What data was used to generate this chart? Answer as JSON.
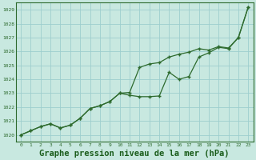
{
  "title": "Graphe pression niveau de la mer (hPa)",
  "xlim": [
    -0.5,
    23.5
  ],
  "ylim": [
    1019.5,
    1029.5
  ],
  "yticks": [
    1020,
    1021,
    1022,
    1023,
    1024,
    1025,
    1026,
    1027,
    1028,
    1029
  ],
  "xticks": [
    0,
    1,
    2,
    3,
    4,
    5,
    6,
    7,
    8,
    9,
    10,
    11,
    12,
    13,
    14,
    15,
    16,
    17,
    18,
    19,
    20,
    21,
    22,
    23
  ],
  "line1_x": [
    0,
    1,
    2,
    3,
    4,
    5,
    6,
    7,
    8,
    9,
    10,
    11,
    12,
    13,
    14,
    15,
    16,
    17,
    18,
    19,
    20,
    21,
    22,
    23
  ],
  "line1_y": [
    1020.0,
    1020.3,
    1020.6,
    1020.8,
    1020.5,
    1020.7,
    1021.2,
    1021.9,
    1022.1,
    1022.4,
    1023.0,
    1022.85,
    1022.75,
    1022.75,
    1022.8,
    1024.5,
    1024.0,
    1024.2,
    1025.6,
    1025.9,
    1026.3,
    1026.2,
    1027.0,
    1029.2
  ],
  "line2_x": [
    0,
    1,
    2,
    3,
    4,
    5,
    6,
    7,
    8,
    9,
    10,
    11,
    12,
    13,
    14,
    15,
    16,
    17,
    18,
    19,
    20,
    21,
    22,
    23
  ],
  "line2_y": [
    1020.0,
    1020.3,
    1020.6,
    1020.8,
    1020.5,
    1020.7,
    1021.2,
    1021.9,
    1022.1,
    1022.4,
    1023.0,
    1023.05,
    1024.85,
    1025.1,
    1025.2,
    1025.6,
    1025.8,
    1025.95,
    1026.2,
    1026.1,
    1026.35,
    1026.25,
    1027.0,
    1029.2
  ],
  "line_color": "#2d6a2d",
  "bg_color": "#c8e8e0",
  "grid_color": "#9ecece",
  "title_color": "#1a5c1a",
  "title_fontsize": 7.5,
  "marker": "+"
}
